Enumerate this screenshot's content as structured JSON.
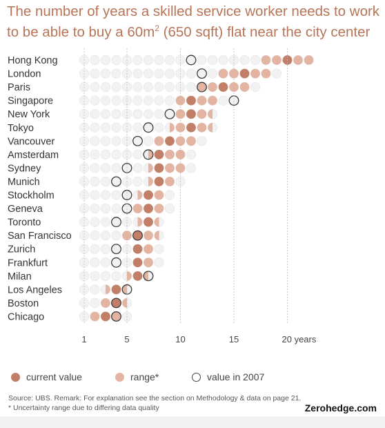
{
  "title_line1": "The number of years a skilled service worker needs to work",
  "title_line2_pre": "to be able to buy a 60m",
  "title_line2_sup": "2",
  "title_line2_post": " (650 sqft) flat near the city center",
  "colors": {
    "current": "#c07f66",
    "range": "#e3b4a2",
    "empty": "#f2f2f2",
    "title": "#b77457"
  },
  "legend": {
    "current_label": "current value",
    "range_label": "range*",
    "v2007_label": "value in 2007"
  },
  "notes": {
    "source": "Source: UBS. Remark: For explanation see the section on Methodology & data on page 21.",
    "uncertainty": "* Uncertainty range due to differing data quality"
  },
  "credit": "Zerohedge.com",
  "chart_data": {
    "type": "scatter",
    "x_ticks": [
      {
        "value": 1,
        "label": "1"
      },
      {
        "value": 5,
        "label": "5"
      },
      {
        "value": 10,
        "label": "10"
      },
      {
        "value": 15,
        "label": "15"
      },
      {
        "value": 20,
        "label": "20 years"
      }
    ],
    "xlim": [
      0.5,
      23
    ],
    "series_names": [
      "current value",
      "range*",
      "value in 2007"
    ],
    "cities": [
      {
        "name": "Hong Kong",
        "current": 20,
        "range": [
          17.5,
          22.5
        ],
        "v2007": 11
      },
      {
        "name": "London",
        "current": 16,
        "range": [
          13.5,
          18.5
        ],
        "v2007": 12
      },
      {
        "name": "Paris",
        "current": 14,
        "range": [
          11.5,
          16.5
        ],
        "v2007": 12
      },
      {
        "name": "Singapore",
        "current": 11,
        "range": [
          9.5,
          13.5
        ],
        "v2007": 15
      },
      {
        "name": "New York",
        "current": 11,
        "range": [
          9.5,
          13
        ],
        "v2007": 9
      },
      {
        "name": "Tokyo",
        "current": 11,
        "range": [
          9,
          13
        ],
        "v2007": 7
      },
      {
        "name": "Vancouver",
        "current": 9,
        "range": [
          7.5,
          11.5
        ],
        "v2007": 6
      },
      {
        "name": "Amsterdam",
        "current": 8,
        "range": [
          7,
          10.5
        ],
        "v2007": 7
      },
      {
        "name": "Sydney",
        "current": 8,
        "range": [
          7,
          10.5
        ],
        "v2007": 5
      },
      {
        "name": "Munich",
        "current": 8,
        "range": [
          7,
          9.5
        ],
        "v2007": 4
      },
      {
        "name": "Stockholm",
        "current": 7,
        "range": [
          6,
          8.5
        ],
        "v2007": 5
      },
      {
        "name": "Geneva",
        "current": 7,
        "range": [
          5.5,
          8.5
        ],
        "v2007": 5
      },
      {
        "name": "Toronto",
        "current": 7,
        "range": [
          6,
          8
        ],
        "v2007": 4
      },
      {
        "name": "San Francisco",
        "current": 6,
        "range": [
          4.5,
          8
        ],
        "v2007": 6
      },
      {
        "name": "Zurich",
        "current": 6,
        "range": [
          5.5,
          7.5
        ],
        "v2007": 4
      },
      {
        "name": "Frankfurt",
        "current": 6,
        "range": [
          5.5,
          7.5
        ],
        "v2007": 4
      },
      {
        "name": "Milan",
        "current": 6,
        "range": [
          5,
          7
        ],
        "v2007": 7
      },
      {
        "name": "Los Angeles",
        "current": 4,
        "range": [
          3,
          5
        ],
        "v2007": 5
      },
      {
        "name": "Boston",
        "current": 4,
        "range": [
          2.5,
          5
        ],
        "v2007": 4
      },
      {
        "name": "Chicago",
        "current": 3,
        "range": [
          1.5,
          4.5
        ],
        "v2007": 4
      }
    ]
  }
}
